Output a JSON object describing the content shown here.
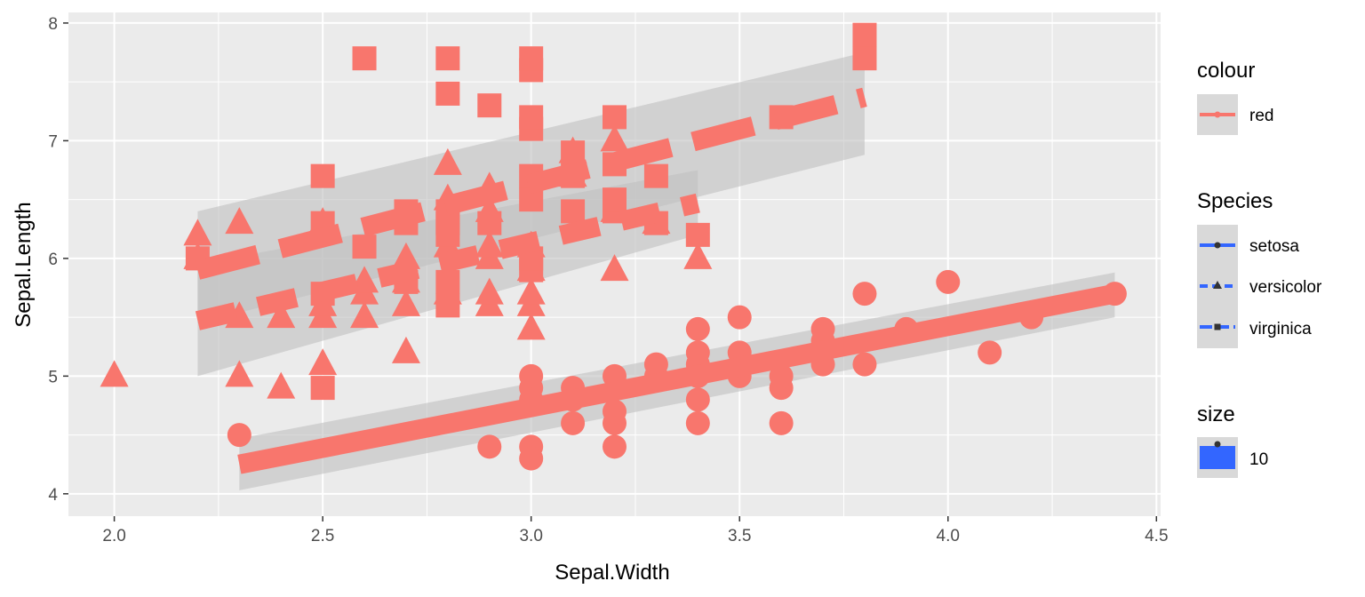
{
  "chart_data": {
    "type": "scatter",
    "xlabel": "Sepal.Width",
    "ylabel": "Sepal.Length",
    "xlim": [
      1.89,
      4.51
    ],
    "ylim": [
      3.81,
      8.09
    ],
    "xticks": [
      2.0,
      2.5,
      3.0,
      3.5,
      4.0,
      4.5
    ],
    "xtick_labels": [
      "2.0",
      "2.5",
      "3.0",
      "3.5",
      "4.0",
      "4.5"
    ],
    "yticks": [
      4,
      5,
      6,
      7,
      8
    ],
    "ytick_labels": [
      "4",
      "5",
      "6",
      "7",
      "8"
    ],
    "grid": true,
    "point_color": "#F8766D",
    "line_color": "#F8766D",
    "ribbon_color": "#bfbfbf",
    "panel_background": "#EBEBEB",
    "legend_key_color": "#3366FF",
    "series": [
      {
        "name": "setosa",
        "shape": "circle",
        "linetype": "solid",
        "points": [
          [
            2.3,
            4.5
          ],
          [
            2.9,
            4.4
          ],
          [
            3.0,
            4.4
          ],
          [
            3.0,
            4.3
          ],
          [
            3.0,
            4.8
          ],
          [
            3.0,
            4.9
          ],
          [
            3.0,
            5.0
          ],
          [
            3.1,
            4.9
          ],
          [
            3.1,
            4.8
          ],
          [
            3.1,
            4.6
          ],
          [
            3.2,
            4.4
          ],
          [
            3.2,
            4.6
          ],
          [
            3.2,
            4.7
          ],
          [
            3.2,
            5.0
          ],
          [
            3.3,
            5.0
          ],
          [
            3.3,
            5.1
          ],
          [
            3.4,
            4.6
          ],
          [
            3.4,
            4.8
          ],
          [
            3.4,
            5.0
          ],
          [
            3.4,
            5.1
          ],
          [
            3.4,
            5.2
          ],
          [
            3.4,
            5.4
          ],
          [
            3.5,
            5.0
          ],
          [
            3.5,
            5.1
          ],
          [
            3.5,
            5.2
          ],
          [
            3.5,
            5.5
          ],
          [
            3.6,
            4.6
          ],
          [
            3.6,
            4.9
          ],
          [
            3.6,
            5.0
          ],
          [
            3.7,
            5.1
          ],
          [
            3.7,
            5.3
          ],
          [
            3.7,
            5.4
          ],
          [
            3.8,
            5.1
          ],
          [
            3.8,
            5.7
          ],
          [
            3.9,
            5.4
          ],
          [
            4.0,
            5.8
          ],
          [
            4.1,
            5.2
          ],
          [
            4.2,
            5.5
          ],
          [
            4.4,
            5.7
          ]
        ],
        "fit": {
          "x": [
            2.3,
            4.4
          ],
          "y": [
            4.25,
            5.7
          ],
          "ci_lower": [
            4.03,
            5.5
          ],
          "ci_upper": [
            4.47,
            5.88
          ]
        }
      },
      {
        "name": "versicolor",
        "shape": "triangle",
        "linetype": "dashed",
        "points": [
          [
            2.0,
            5.0
          ],
          [
            2.2,
            6.0
          ],
          [
            2.2,
            6.2
          ],
          [
            2.3,
            5.0
          ],
          [
            2.3,
            5.5
          ],
          [
            2.3,
            6.3
          ],
          [
            2.4,
            4.9
          ],
          [
            2.4,
            5.5
          ],
          [
            2.5,
            5.1
          ],
          [
            2.5,
            5.5
          ],
          [
            2.5,
            5.6
          ],
          [
            2.5,
            6.3
          ],
          [
            2.6,
            5.5
          ],
          [
            2.6,
            5.7
          ],
          [
            2.6,
            5.8
          ],
          [
            2.7,
            5.2
          ],
          [
            2.7,
            5.6
          ],
          [
            2.7,
            5.8
          ],
          [
            2.7,
            6.0
          ],
          [
            2.8,
            5.7
          ],
          [
            2.8,
            6.1
          ],
          [
            2.8,
            6.5
          ],
          [
            2.8,
            6.8
          ],
          [
            2.9,
            5.6
          ],
          [
            2.9,
            5.7
          ],
          [
            2.9,
            6.0
          ],
          [
            2.9,
            6.1
          ],
          [
            2.9,
            6.4
          ],
          [
            2.9,
            6.6
          ],
          [
            3.0,
            5.4
          ],
          [
            3.0,
            5.6
          ],
          [
            3.0,
            5.7
          ],
          [
            3.0,
            5.9
          ],
          [
            3.0,
            6.1
          ],
          [
            3.1,
            6.7
          ],
          [
            3.1,
            6.9
          ],
          [
            3.2,
            5.9
          ],
          [
            3.2,
            6.4
          ],
          [
            3.2,
            7.0
          ],
          [
            3.3,
            6.3
          ],
          [
            3.4,
            6.0
          ]
        ],
        "fit": {
          "x": [
            2.2,
            3.4
          ],
          "y": [
            5.47,
            6.47
          ],
          "ci_lower": [
            5.0,
            6.2
          ],
          "ci_upper": [
            5.95,
            6.75
          ]
        }
      },
      {
        "name": "virginica",
        "shape": "square",
        "linetype": "longdash",
        "points": [
          [
            2.2,
            6.0
          ],
          [
            2.5,
            4.9
          ],
          [
            2.5,
            5.7
          ],
          [
            2.5,
            6.3
          ],
          [
            2.5,
            6.7
          ],
          [
            2.6,
            6.1
          ],
          [
            2.6,
            7.7
          ],
          [
            2.7,
            5.8
          ],
          [
            2.7,
            6.3
          ],
          [
            2.7,
            6.4
          ],
          [
            2.8,
            5.6
          ],
          [
            2.8,
            5.8
          ],
          [
            2.8,
            6.2
          ],
          [
            2.8,
            6.3
          ],
          [
            2.8,
            6.4
          ],
          [
            2.8,
            7.4
          ],
          [
            2.8,
            7.7
          ],
          [
            2.9,
            6.3
          ],
          [
            2.9,
            7.3
          ],
          [
            3.0,
            5.9
          ],
          [
            3.0,
            6.0
          ],
          [
            3.0,
            6.5
          ],
          [
            3.0,
            6.7
          ],
          [
            3.0,
            7.1
          ],
          [
            3.0,
            7.2
          ],
          [
            3.0,
            7.6
          ],
          [
            3.0,
            7.7
          ],
          [
            3.1,
            6.4
          ],
          [
            3.1,
            6.7
          ],
          [
            3.1,
            6.9
          ],
          [
            3.2,
            6.4
          ],
          [
            3.2,
            6.5
          ],
          [
            3.2,
            6.8
          ],
          [
            3.2,
            7.2
          ],
          [
            3.3,
            6.3
          ],
          [
            3.3,
            6.7
          ],
          [
            3.4,
            6.2
          ],
          [
            3.6,
            7.2
          ],
          [
            3.8,
            7.7
          ],
          [
            3.8,
            7.9
          ]
        ],
        "fit": {
          "x": [
            2.2,
            3.8
          ],
          "y": [
            5.9,
            7.37
          ],
          "ci_lower": [
            5.45,
            6.88
          ],
          "ci_upper": [
            6.4,
            7.75
          ]
        }
      }
    ]
  },
  "legend": {
    "colour": {
      "title": "colour",
      "items": [
        "red"
      ]
    },
    "species": {
      "title": "Species",
      "items": [
        "setosa",
        "versicolor",
        "virginica"
      ]
    },
    "size": {
      "title": "size",
      "items": [
        "10"
      ]
    }
  }
}
